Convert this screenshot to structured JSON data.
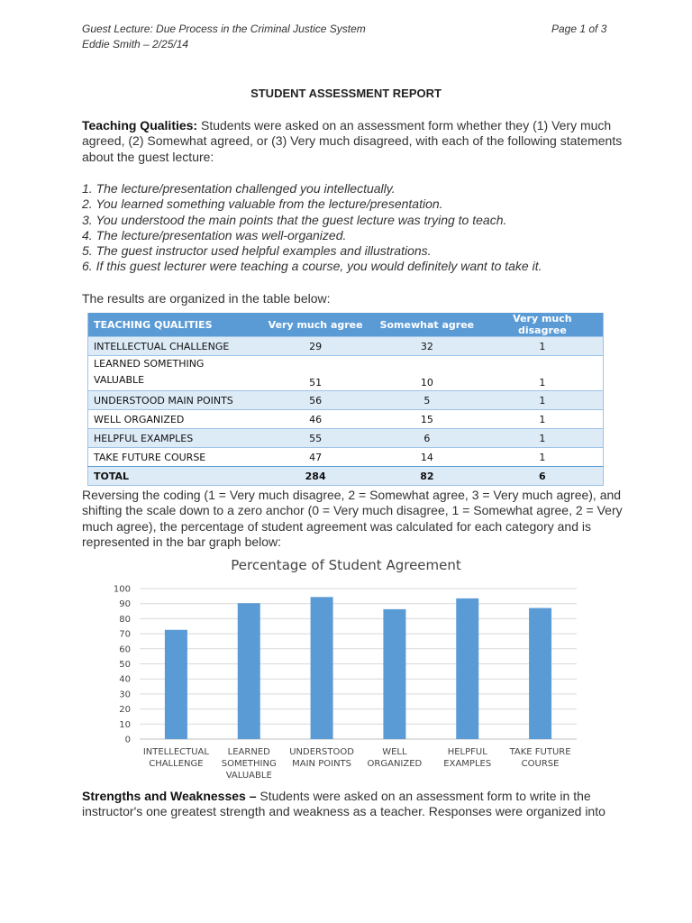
{
  "header": {
    "lecture": "Guest Lecture: Due Process in the Criminal Justice System",
    "author_date": "Eddie Smith – 2/25/14",
    "page": "Page 1 of 3"
  },
  "report_title": "STUDENT ASSESSMENT REPORT",
  "teaching": {
    "label": "Teaching Qualities:",
    "text": " Students were asked on an assessment form whether they (1) Very much agreed, (2) Somewhat agreed, or (3) Very much disagreed, with each of the following statements about the guest lecture:"
  },
  "statements": [
    "1. The lecture/presentation challenged you intellectually.",
    "2. You learned something valuable from the lecture/presentation.",
    "3. You understood the main points that the guest lecture was trying to teach.",
    "4. The lecture/presentation was well-organized.",
    "5. The guest instructor used helpful examples and illustrations.",
    "6. If this guest lecturer were teaching a course, you would definitely want to take it."
  ],
  "results_intro": "The results are organized in the table below:",
  "table": {
    "headers": [
      "TEACHING QUALITIES",
      "Very much agree",
      "Somewhat agree",
      "Very much disagree"
    ],
    "rows": [
      [
        "INTELLECTUAL CHALLENGE",
        "29",
        "32",
        "1"
      ],
      [
        "LEARNED SOMETHING VALUABLE",
        "51",
        "10",
        "1"
      ],
      [
        "UNDERSTOOD MAIN POINTS",
        "56",
        "5",
        "1"
      ],
      [
        "WELL ORGANIZED",
        "46",
        "15",
        "1"
      ],
      [
        "HELPFUL EXAMPLES",
        "55",
        "6",
        "1"
      ],
      [
        "TAKE FUTURE COURSE",
        "47",
        "14",
        "1"
      ]
    ],
    "total": [
      "TOTAL",
      "284",
      "82",
      "6"
    ]
  },
  "reversing_text": "Reversing the coding (1 = Very much disagree, 2 = Somewhat agree, 3 = Very much agree), and shifting the scale down to a zero anchor (0 = Very much disagree, 1 = Somewhat agree, 2 = Very much agree), the percentage of student agreement was calculated for each category and is represented in the bar graph below:",
  "chart_data": {
    "type": "bar",
    "title": "Percentage of Student Agreement",
    "categories": [
      [
        "INTELLECTUAL",
        "CHALLENGE"
      ],
      [
        "LEARNED",
        "SOMETHING",
        "VALUABLE"
      ],
      [
        "UNDERSTOOD",
        "MAIN POINTS"
      ],
      [
        "WELL",
        "ORGANIZED"
      ],
      [
        "HELPFUL",
        "EXAMPLES"
      ],
      [
        "TAKE FUTURE",
        "COURSE"
      ]
    ],
    "values": [
      72.6,
      90.3,
      94.4,
      86.3,
      93.5,
      87.1
    ],
    "ylim": [
      0,
      100
    ],
    "yticks": [
      0,
      10,
      20,
      30,
      40,
      50,
      60,
      70,
      80,
      90,
      100
    ],
    "bar_color": "#5b9bd5",
    "grid": true
  },
  "strengths": {
    "label": "Strengths and Weaknesses –",
    "text": " Students were asked on an assessment form to write in the instructor's one greatest strength and weakness as a teacher. Responses were organized into"
  },
  "colors": {
    "accent": "#5b9bd5",
    "band": "#ddebf7"
  }
}
